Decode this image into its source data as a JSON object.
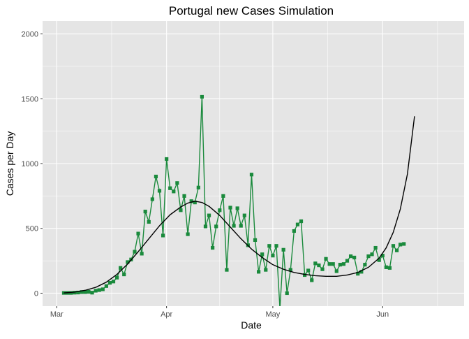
{
  "chart_data": {
    "type": "line",
    "title": "Portugal new Cases Simulation",
    "xlabel": "Date",
    "ylabel": "Cases per Day",
    "x_ticks": [
      {
        "label": "Mar",
        "date": "2020-03-01"
      },
      {
        "label": "Apr",
        "date": "2020-04-01"
      },
      {
        "label": "May",
        "date": "2020-05-01"
      },
      {
        "label": "Jun",
        "date": "2020-06-01"
      }
    ],
    "y_ticks": [
      0,
      500,
      1000,
      1500,
      2000
    ],
    "xlim": [
      "2020-02-26",
      "2020-06-24"
    ],
    "ylim": [
      -100,
      2100
    ],
    "grid": true,
    "colors": {
      "panel": "#e5e5e5",
      "grid": "#ffffff",
      "observed": "#1a8a3c",
      "simulated": "#000000"
    },
    "series": [
      {
        "style": "line-square-markers",
        "points": [
          [
            "2020-03-03",
            2
          ],
          [
            "2020-03-04",
            2
          ],
          [
            "2020-03-05",
            2
          ],
          [
            "2020-03-06",
            4
          ],
          [
            "2020-03-07",
            5
          ],
          [
            "2020-03-08",
            9
          ],
          [
            "2020-03-09",
            9
          ],
          [
            "2020-03-10",
            11
          ],
          [
            "2020-03-11",
            4
          ],
          [
            "2020-03-12",
            19
          ],
          [
            "2020-03-13",
            24
          ],
          [
            "2020-03-14",
            30
          ],
          [
            "2020-03-15",
            55
          ],
          [
            "2020-03-16",
            80
          ],
          [
            "2020-03-17",
            90
          ],
          [
            "2020-03-18",
            120
          ],
          [
            "2020-03-19",
            195
          ],
          [
            "2020-03-20",
            145
          ],
          [
            "2020-03-21",
            240
          ],
          [
            "2020-03-22",
            260
          ],
          [
            "2020-03-23",
            320
          ],
          [
            "2020-03-24",
            460
          ],
          [
            "2020-03-25",
            305
          ],
          [
            "2020-03-26",
            630
          ],
          [
            "2020-03-27",
            550
          ],
          [
            "2020-03-28",
            725
          ],
          [
            "2020-03-29",
            900
          ],
          [
            "2020-03-30",
            790
          ],
          [
            "2020-03-31",
            445
          ],
          [
            "2020-04-01",
            1035
          ],
          [
            "2020-04-02",
            810
          ],
          [
            "2020-04-03",
            785
          ],
          [
            "2020-04-04",
            850
          ],
          [
            "2020-04-05",
            640
          ],
          [
            "2020-04-06",
            750
          ],
          [
            "2020-04-07",
            455
          ],
          [
            "2020-04-08",
            710
          ],
          [
            "2020-04-09",
            700
          ],
          [
            "2020-04-10",
            815
          ],
          [
            "2020-04-11",
            1515
          ],
          [
            "2020-04-12",
            515
          ],
          [
            "2020-04-13",
            600
          ],
          [
            "2020-04-14",
            350
          ],
          [
            "2020-04-15",
            515
          ],
          [
            "2020-04-16",
            640
          ],
          [
            "2020-04-17",
            750
          ],
          [
            "2020-04-18",
            180
          ],
          [
            "2020-04-19",
            660
          ],
          [
            "2020-04-20",
            520
          ],
          [
            "2020-04-21",
            655
          ],
          [
            "2020-04-22",
            520
          ],
          [
            "2020-04-23",
            600
          ],
          [
            "2020-04-24",
            370
          ],
          [
            "2020-04-25",
            915
          ],
          [
            "2020-04-26",
            410
          ],
          [
            "2020-04-27",
            165
          ],
          [
            "2020-04-28",
            300
          ],
          [
            "2020-04-29",
            180
          ],
          [
            "2020-04-30",
            365
          ],
          [
            "2020-05-01",
            290
          ],
          [
            "2020-05-02",
            365
          ],
          [
            "2020-05-03",
            -120
          ],
          [
            "2020-05-04",
            335
          ],
          [
            "2020-05-05",
            0
          ],
          [
            "2020-05-06",
            180
          ],
          [
            "2020-05-07",
            480
          ],
          [
            "2020-05-08",
            530
          ],
          [
            "2020-05-09",
            555
          ],
          [
            "2020-05-10",
            140
          ],
          [
            "2020-05-11",
            175
          ],
          [
            "2020-05-12",
            100
          ],
          [
            "2020-05-13",
            230
          ],
          [
            "2020-05-14",
            215
          ],
          [
            "2020-05-15",
            185
          ],
          [
            "2020-05-16",
            265
          ],
          [
            "2020-05-17",
            225
          ],
          [
            "2020-05-18",
            225
          ],
          [
            "2020-05-19",
            170
          ],
          [
            "2020-05-20",
            220
          ],
          [
            "2020-05-21",
            225
          ],
          [
            "2020-05-22",
            250
          ],
          [
            "2020-05-23",
            285
          ],
          [
            "2020-05-24",
            275
          ],
          [
            "2020-05-25",
            150
          ],
          [
            "2020-05-26",
            165
          ],
          [
            "2020-05-27",
            220
          ],
          [
            "2020-05-28",
            285
          ],
          [
            "2020-05-29",
            300
          ],
          [
            "2020-05-30",
            350
          ],
          [
            "2020-05-31",
            255
          ],
          [
            "2020-06-01",
            290
          ],
          [
            "2020-06-02",
            200
          ],
          [
            "2020-06-03",
            195
          ],
          [
            "2020-06-04",
            365
          ],
          [
            "2020-06-05",
            330
          ],
          [
            "2020-06-06",
            375
          ],
          [
            "2020-06-07",
            380
          ]
        ]
      },
      {
        "style": "line",
        "points": [
          [
            "2020-03-03",
            2
          ],
          [
            "2020-03-06",
            8
          ],
          [
            "2020-03-09",
            22
          ],
          [
            "2020-03-12",
            45
          ],
          [
            "2020-03-15",
            85
          ],
          [
            "2020-03-18",
            145
          ],
          [
            "2020-03-21",
            225
          ],
          [
            "2020-03-24",
            320
          ],
          [
            "2020-03-27",
            420
          ],
          [
            "2020-03-30",
            520
          ],
          [
            "2020-04-02",
            605
          ],
          [
            "2020-04-05",
            665
          ],
          [
            "2020-04-07",
            695
          ],
          [
            "2020-04-09",
            710
          ],
          [
            "2020-04-11",
            700
          ],
          [
            "2020-04-13",
            670
          ],
          [
            "2020-04-16",
            600
          ],
          [
            "2020-04-19",
            510
          ],
          [
            "2020-04-22",
            420
          ],
          [
            "2020-04-25",
            340
          ],
          [
            "2020-04-28",
            275
          ],
          [
            "2020-05-01",
            220
          ],
          [
            "2020-05-04",
            185
          ],
          [
            "2020-05-07",
            160
          ],
          [
            "2020-05-10",
            145
          ],
          [
            "2020-05-13",
            135
          ],
          [
            "2020-05-16",
            130
          ],
          [
            "2020-05-19",
            130
          ],
          [
            "2020-05-22",
            140
          ],
          [
            "2020-05-25",
            160
          ],
          [
            "2020-05-28",
            200
          ],
          [
            "2020-05-31",
            270
          ],
          [
            "2020-06-02",
            350
          ],
          [
            "2020-06-04",
            470
          ],
          [
            "2020-06-06",
            650
          ],
          [
            "2020-06-08",
            920
          ],
          [
            "2020-06-10",
            1365
          ]
        ]
      }
    ]
  }
}
